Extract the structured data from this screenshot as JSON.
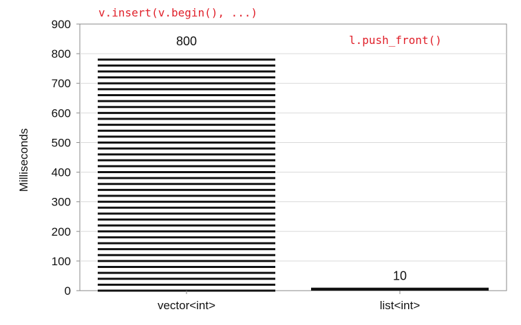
{
  "chart_data": {
    "type": "bar",
    "categories": [
      "vector<int>",
      "list<int>"
    ],
    "values": [
      800,
      10
    ],
    "data_labels": [
      "800",
      "10"
    ],
    "annotations": [
      "v.insert(v.begin(), ...)",
      "l.push_front()"
    ],
    "title": "",
    "xlabel": "",
    "ylabel": "Milliseconds",
    "ylim": [
      0,
      900
    ],
    "yticks": [
      0,
      100,
      200,
      300,
      400,
      500,
      600,
      700,
      800,
      900
    ],
    "grid": true,
    "bar_fill": [
      "horizontal-stripes",
      "solid"
    ]
  },
  "colors": {
    "annotation": "#e0202a",
    "grid": "#d9d9d9",
    "axis": "#888888",
    "bar": "#111111"
  }
}
